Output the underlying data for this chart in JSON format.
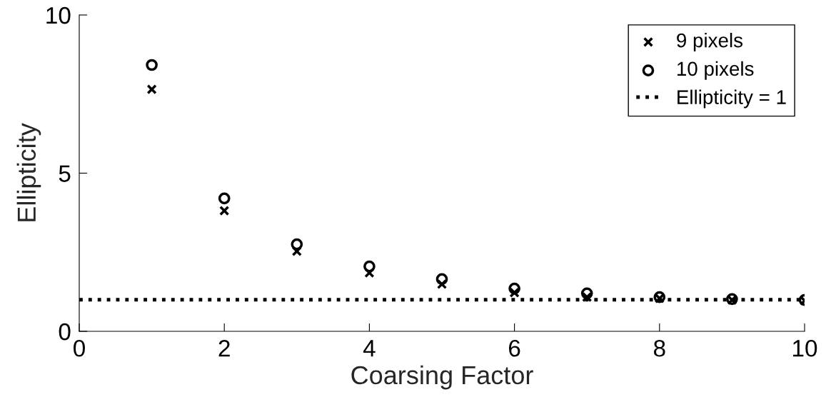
{
  "chart_data": {
    "type": "scatter",
    "xlabel": "Coarsing Factor",
    "ylabel": "Ellipticity",
    "x": [
      1,
      2,
      3,
      4,
      5,
      6,
      7,
      8,
      9,
      10
    ],
    "series": [
      {
        "name": "9 pixels",
        "color": "#000000",
        "marker": "cross",
        "values": [
          7.65,
          3.81,
          2.53,
          1.85,
          1.49,
          1.22,
          1.08,
          1.04,
          0.99,
          0.97
        ]
      },
      {
        "name": "10 pixels",
        "color": "#000000",
        "marker": "circle",
        "values": [
          8.42,
          4.2,
          2.75,
          2.05,
          1.65,
          1.35,
          1.2,
          1.08,
          1.02,
          0.99
        ]
      }
    ],
    "ref_lines": [
      {
        "axis": "y",
        "value": 1,
        "label": "Ellipticity = 1",
        "color": "#000000",
        "line_style": "dotted"
      }
    ],
    "xlim": [
      0,
      10
    ],
    "xticks": [
      0,
      2,
      4,
      6,
      8,
      10
    ],
    "ylim": [
      0,
      10
    ],
    "yticks": [
      0,
      5,
      10
    ],
    "grid": false,
    "legend": "top right"
  }
}
